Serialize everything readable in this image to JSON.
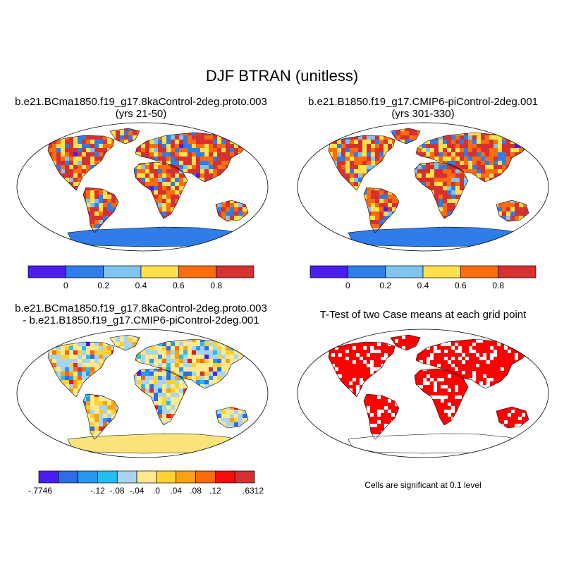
{
  "title": "DJF BTRAN (unitless)",
  "panels": [
    {
      "id": "case",
      "title_line1": "b.e21.BCma1850.f19_g17.8kaControl-2deg.proto.003",
      "title_line2": "(yrs 21-50)"
    },
    {
      "id": "control",
      "title_line1": "b.e21.B1850.f19_g17.CMIP6-piControl-2deg.001",
      "title_line2": "(yrs 301-330)"
    },
    {
      "id": "difference",
      "title_line1": "b.e21.BCma1850.f19_g17.8kaControl-2deg.proto.003",
      "title_line2": "- b.e21.B1850.f19_g17.CMIP6-piControl-2deg.001"
    },
    {
      "id": "ttest",
      "title_line1": "T-Test of two Case means at each grid point",
      "note": "Cells are significant at 0.1 level"
    }
  ],
  "colorbars": {
    "absolute": {
      "colors": [
        "#4b1ef0",
        "#2e7de8",
        "#7ec4ee",
        "#fde14a",
        "#fb6c0c",
        "#d63030"
      ],
      "labels": [
        "0",
        "0.2",
        "0.4",
        "0.6",
        "0.8"
      ]
    },
    "difference": {
      "colors": [
        "#4b1ef0",
        "#2e6de6",
        "#2a97ee",
        "#24bff2",
        "#a8d4ef",
        "#fde98e",
        "#fdd132",
        "#faa212",
        "#f96a0c",
        "#f40e0c",
        "#d63030"
      ],
      "labels": [
        "-.7746",
        "-.12",
        "-.08",
        "-.04",
        ".0",
        ".04",
        ".08",
        ".12",
        ".6312"
      ]
    }
  },
  "map_colors": {
    "land_case": "#e06a28",
    "ocean": "#ffffff",
    "antarctica_abs": "#2e7de8",
    "land_diff": "#f3e08a",
    "antarctica_diff": "#fbe37a",
    "significant": "#ff0000"
  }
}
